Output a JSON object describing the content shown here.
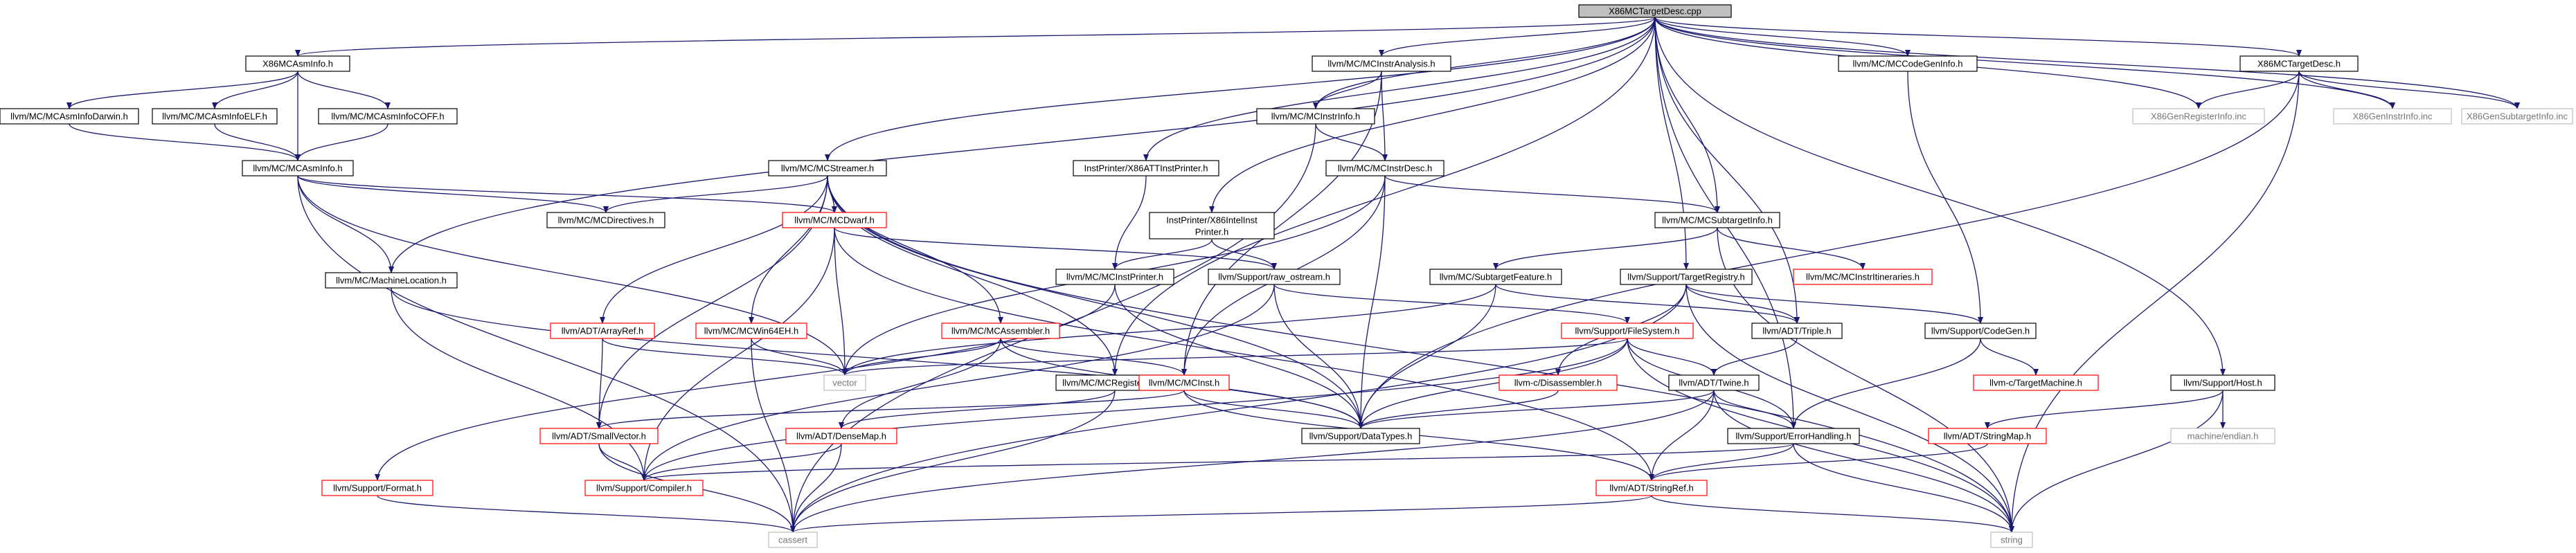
{
  "diagram": {
    "type": "include-dependency-graph",
    "root": "X86MCTargetDesc.cpp",
    "colors": {
      "edge": "#191970",
      "node_border_normal": "#000000",
      "node_border_undocumented": "#ff0000",
      "node_border_external": "#bfbfbf",
      "root_fill": "#bfbfbf",
      "node_fill": "#ffffff",
      "text_normal": "#000000",
      "text_external": "#777777"
    },
    "nodes": [
      {
        "id": "root",
        "label": "X86MCTargetDesc.cpp",
        "style": "root"
      },
      {
        "id": "x86asminfo",
        "label": "X86MCAsmInfo.h",
        "style": "normal"
      },
      {
        "id": "instranalysis",
        "label": "llvm/MC/MCInstrAnalysis.h",
        "style": "normal"
      },
      {
        "id": "codegeninfo",
        "label": "llvm/MC/MCCodeGenInfo.h",
        "style": "normal"
      },
      {
        "id": "x86targetdesc_h",
        "label": "X86MCTargetDesc.h",
        "style": "normal"
      },
      {
        "id": "asminfodarwin",
        "label": "llvm/MC/MCAsmInfoDarwin.h",
        "style": "normal"
      },
      {
        "id": "asminfoelf",
        "label": "llvm/MC/MCAsmInfoELF.h",
        "style": "normal"
      },
      {
        "id": "asminfocoff",
        "label": "llvm/MC/MCAsmInfoCOFF.h",
        "style": "normal"
      },
      {
        "id": "mcinstrinfo",
        "label": "llvm/MC/MCInstrInfo.h",
        "style": "normal"
      },
      {
        "id": "genreginfo",
        "label": "X86GenRegisterInfo.inc",
        "style": "external"
      },
      {
        "id": "geninstrinfo",
        "label": "X86GenInstrInfo.inc",
        "style": "external"
      },
      {
        "id": "gensubtarget",
        "label": "X86GenSubtargetInfo.inc",
        "style": "external"
      },
      {
        "id": "mcasminfo",
        "label": "llvm/MC/MCAsmInfo.h",
        "style": "normal"
      },
      {
        "id": "mcstreamer",
        "label": "llvm/MC/MCStreamer.h",
        "style": "normal"
      },
      {
        "id": "att",
        "label": "InstPrinter/X86ATTInstPrinter.h",
        "style": "normal"
      },
      {
        "id": "mcinstrdesc",
        "label": "llvm/MC/MCInstrDesc.h",
        "style": "normal"
      },
      {
        "id": "mcdirectives",
        "label": "llvm/MC/MCDirectives.h",
        "style": "normal"
      },
      {
        "id": "mcdwarf",
        "label": "llvm/MC/MCDwarf.h",
        "style": "undocumented"
      },
      {
        "id": "intel1",
        "label": "InstPrinter/X86IntelInst",
        "style": "normal"
      },
      {
        "id": "intel2",
        "label": "Printer.h",
        "style": "normal"
      },
      {
        "id": "subtargetinfo",
        "label": "llvm/MC/MCSubtargetInfo.h",
        "style": "normal"
      },
      {
        "id": "mcinstprinter",
        "label": "llvm/MC/MCInstPrinter.h",
        "style": "normal"
      },
      {
        "id": "rawostream",
        "label": "llvm/Support/raw_ostream.h",
        "style": "normal"
      },
      {
        "id": "machineloc",
        "label": "llvm/MC/MachineLocation.h",
        "style": "normal"
      },
      {
        "id": "subtargetfeature",
        "label": "llvm/MC/SubtargetFeature.h",
        "style": "normal"
      },
      {
        "id": "targetregistry",
        "label": "llvm/Support/TargetRegistry.h",
        "style": "normal"
      },
      {
        "id": "instritin",
        "label": "llvm/MC/MCInstrItineraries.h",
        "style": "undocumented"
      },
      {
        "id": "arrayref",
        "label": "llvm/ADT/ArrayRef.h",
        "style": "undocumented"
      },
      {
        "id": "win64eh",
        "label": "llvm/MC/MCWin64EH.h",
        "style": "undocumented"
      },
      {
        "id": "mcassembler",
        "label": "llvm/MC/MCAssembler.h",
        "style": "undocumented"
      },
      {
        "id": "filesystem",
        "label": "llvm/Support/FileSystem.h",
        "style": "undocumented"
      },
      {
        "id": "triple",
        "label": "llvm/ADT/Triple.h",
        "style": "normal"
      },
      {
        "id": "codegen",
        "label": "llvm/Support/CodeGen.h",
        "style": "normal"
      },
      {
        "id": "vector",
        "label": "vector",
        "style": "external"
      },
      {
        "id": "mcreginfo",
        "label": "llvm/MC/MCRegisterInfo.h",
        "style": "normal"
      },
      {
        "id": "mcinst",
        "label": "llvm/MC/MCInst.h",
        "style": "undocumented"
      },
      {
        "id": "disassembler",
        "label": "llvm-c/Disassembler.h",
        "style": "undocumented"
      },
      {
        "id": "twine",
        "label": "llvm/ADT/Twine.h",
        "style": "normal"
      },
      {
        "id": "targetmachine",
        "label": "llvm-c/TargetMachine.h",
        "style": "undocumented"
      },
      {
        "id": "host",
        "label": "llvm/Support/Host.h",
        "style": "normal"
      },
      {
        "id": "smallvector",
        "label": "llvm/ADT/SmallVector.h",
        "style": "undocumented"
      },
      {
        "id": "densemap",
        "label": "llvm/ADT/DenseMap.h",
        "style": "undocumented"
      },
      {
        "id": "datatypes",
        "label": "llvm/Support/DataTypes.h",
        "style": "normal"
      },
      {
        "id": "errorhandling",
        "label": "llvm/Support/ErrorHandling.h",
        "style": "normal"
      },
      {
        "id": "stringmap",
        "label": "llvm/ADT/StringMap.h",
        "style": "undocumented"
      },
      {
        "id": "endian",
        "label": "machine/endian.h",
        "style": "external"
      },
      {
        "id": "format",
        "label": "llvm/Support/Format.h",
        "style": "undocumented"
      },
      {
        "id": "compiler",
        "label": "llvm/Support/Compiler.h",
        "style": "undocumented"
      },
      {
        "id": "stringref",
        "label": "llvm/ADT/StringRef.h",
        "style": "undocumented"
      },
      {
        "id": "cassert",
        "label": "cassert",
        "style": "external"
      },
      {
        "id": "string",
        "label": "string",
        "style": "external"
      }
    ],
    "edges": [
      [
        "root",
        "x86asminfo"
      ],
      [
        "root",
        "instranalysis"
      ],
      [
        "root",
        "codegeninfo"
      ],
      [
        "root",
        "x86targetdesc_h"
      ],
      [
        "root",
        "mcinstrinfo"
      ],
      [
        "root",
        "genreginfo"
      ],
      [
        "root",
        "geninstrinfo"
      ],
      [
        "root",
        "gensubtarget"
      ],
      [
        "root",
        "mcstreamer"
      ],
      [
        "root",
        "att"
      ],
      [
        "root",
        "intel1"
      ],
      [
        "root",
        "subtargetinfo"
      ],
      [
        "root",
        "machineloc"
      ],
      [
        "root",
        "targetregistry"
      ],
      [
        "root",
        "triple"
      ],
      [
        "root",
        "host"
      ],
      [
        "root",
        "mcreginfo"
      ],
      [
        "root",
        "errorhandling"
      ],
      [
        "x86asminfo",
        "asminfodarwin"
      ],
      [
        "x86asminfo",
        "asminfoelf"
      ],
      [
        "x86asminfo",
        "asminfocoff"
      ],
      [
        "x86asminfo",
        "mcasminfo"
      ],
      [
        "asminfodarwin",
        "mcasminfo"
      ],
      [
        "asminfoelf",
        "mcasminfo"
      ],
      [
        "asminfocoff",
        "mcasminfo"
      ],
      [
        "instranalysis",
        "mcinstrinfo"
      ],
      [
        "instranalysis",
        "mcinstrdesc"
      ],
      [
        "instranalysis",
        "mcinst"
      ],
      [
        "codegeninfo",
        "codegen"
      ],
      [
        "x86targetdesc_h",
        "genreginfo"
      ],
      [
        "x86targetdesc_h",
        "geninstrinfo"
      ],
      [
        "x86targetdesc_h",
        "gensubtarget"
      ],
      [
        "x86targetdesc_h",
        "string"
      ],
      [
        "x86targetdesc_h",
        "datatypes"
      ],
      [
        "mcinstrinfo",
        "mcinstrdesc"
      ],
      [
        "mcinstrinfo",
        "cassert"
      ],
      [
        "mcasminfo",
        "mcdirectives"
      ],
      [
        "mcasminfo",
        "mcdwarf"
      ],
      [
        "mcasminfo",
        "machineloc"
      ],
      [
        "mcasminfo",
        "cassert"
      ],
      [
        "mcasminfo",
        "vector"
      ],
      [
        "mcstreamer",
        "mcdirectives"
      ],
      [
        "mcstreamer",
        "mcdwarf"
      ],
      [
        "mcstreamer",
        "arrayref"
      ],
      [
        "mcstreamer",
        "win64eh"
      ],
      [
        "mcstreamer",
        "mcassembler"
      ],
      [
        "mcstreamer",
        "smallvector"
      ],
      [
        "mcstreamer",
        "datatypes"
      ],
      [
        "mcstreamer",
        "string"
      ],
      [
        "mcstreamer",
        "mcreginfo"
      ],
      [
        "att",
        "mcinstprinter"
      ],
      [
        "mcinstrdesc",
        "subtargetinfo"
      ],
      [
        "mcinstrdesc",
        "mcinst"
      ],
      [
        "mcinstrdesc",
        "datatypes"
      ],
      [
        "mcinstrdesc",
        "vector"
      ],
      [
        "mcdwarf",
        "rawostream"
      ],
      [
        "mcdwarf",
        "compiler"
      ],
      [
        "mcdwarf",
        "vector"
      ],
      [
        "mcdwarf",
        "stringref"
      ],
      [
        "intel1",
        "mcinstprinter"
      ],
      [
        "intel1",
        "rawostream"
      ],
      [
        "subtargetinfo",
        "subtargetfeature"
      ],
      [
        "subtargetinfo",
        "instritin"
      ],
      [
        "subtargetinfo",
        "string"
      ],
      [
        "mcinstprinter",
        "datatypes"
      ],
      [
        "mcinstprinter",
        "format"
      ],
      [
        "rawostream",
        "compiler"
      ],
      [
        "rawostream",
        "datatypes"
      ],
      [
        "rawostream",
        "filesystem"
      ],
      [
        "machineloc",
        "datatypes"
      ],
      [
        "machineloc",
        "compiler"
      ],
      [
        "subtargetfeature",
        "vector"
      ],
      [
        "subtargetfeature",
        "datatypes"
      ],
      [
        "subtargetfeature",
        "triple"
      ],
      [
        "targetregistry",
        "triple"
      ],
      [
        "targetregistry",
        "codegen"
      ],
      [
        "targetregistry",
        "disassembler"
      ],
      [
        "targetregistry",
        "string"
      ],
      [
        "targetregistry",
        "cassert"
      ],
      [
        "arrayref",
        "smallvector"
      ],
      [
        "arrayref",
        "vector"
      ],
      [
        "win64eh",
        "vector"
      ],
      [
        "win64eh",
        "cassert"
      ],
      [
        "mcassembler",
        "densemap"
      ],
      [
        "mcassembler",
        "mcinst"
      ],
      [
        "mcassembler",
        "vector"
      ],
      [
        "mcassembler",
        "datatypes"
      ],
      [
        "filesystem",
        "twine"
      ],
      [
        "filesystem",
        "datatypes"
      ],
      [
        "filesystem",
        "errorhandling"
      ],
      [
        "filesystem",
        "vector"
      ],
      [
        "filesystem",
        "string"
      ],
      [
        "filesystem",
        "compiler"
      ],
      [
        "triple",
        "twine"
      ],
      [
        "codegen",
        "targetmachine"
      ],
      [
        "codegen",
        "errorhandling"
      ],
      [
        "mcreginfo",
        "densemap"
      ],
      [
        "mcreginfo",
        "cassert"
      ],
      [
        "mcinst",
        "smallvector"
      ],
      [
        "mcinst",
        "datatypes"
      ],
      [
        "mcinst",
        "stringref"
      ],
      [
        "disassembler",
        "datatypes"
      ],
      [
        "twine",
        "stringref"
      ],
      [
        "twine",
        "datatypes"
      ],
      [
        "twine",
        "errorhandling"
      ],
      [
        "twine",
        "cassert"
      ],
      [
        "twine",
        "string"
      ],
      [
        "host",
        "stringmap"
      ],
      [
        "host",
        "endian"
      ],
      [
        "host",
        "string"
      ],
      [
        "smallvector",
        "compiler"
      ],
      [
        "smallvector",
        "cassert"
      ],
      [
        "densemap",
        "compiler"
      ],
      [
        "densemap",
        "cassert"
      ],
      [
        "errorhandling",
        "stringref"
      ],
      [
        "errorhandling",
        "compiler"
      ],
      [
        "errorhandling",
        "string"
      ],
      [
        "stringmap",
        "stringref"
      ],
      [
        "format",
        "cassert"
      ],
      [
        "stringref",
        "cassert"
      ],
      [
        "stringref",
        "string"
      ]
    ]
  }
}
